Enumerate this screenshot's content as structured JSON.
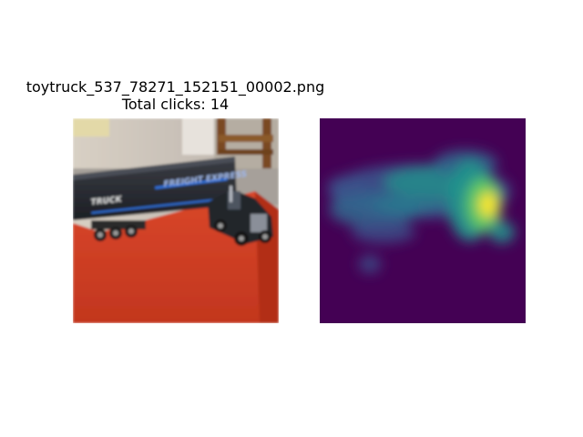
{
  "figure": {
    "title_line1": "toytruck_537_78271_152151_00002.png",
    "title_line2": "Total clicks: 14"
  },
  "chart_data": {
    "type": "heatmap",
    "panels": [
      {
        "name": "image",
        "content": "toy semi truck on red cloth covered table"
      },
      {
        "name": "click-heatmap",
        "colormap": "viridis"
      }
    ],
    "title": "toytruck_537_78271_152151_00002.png",
    "subtitle": "Total clicks: 14",
    "total_clicks": 14,
    "peak_region": "truck cab (right side)",
    "colors": {
      "background_low": "#440154",
      "mid": "#21918c",
      "high": "#5ec962",
      "peak": "#fde725"
    }
  }
}
